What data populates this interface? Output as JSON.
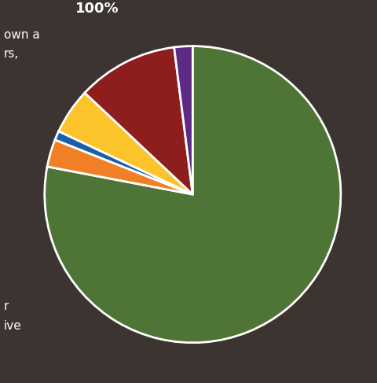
{
  "chart_data": {
    "type": "pie",
    "categories": [
      null,
      null,
      null,
      null,
      null,
      null
    ],
    "values": [
      78,
      3,
      1,
      5,
      11,
      2
    ],
    "colors": [
      "#4e7436",
      "#f07f26",
      "#1b5fa6",
      "#fdc32b",
      "#8e1e1e",
      "#5e2a84"
    ],
    "annotations": [
      "100%",
      "own a",
      "rs,",
      "r",
      "ive"
    ]
  }
}
